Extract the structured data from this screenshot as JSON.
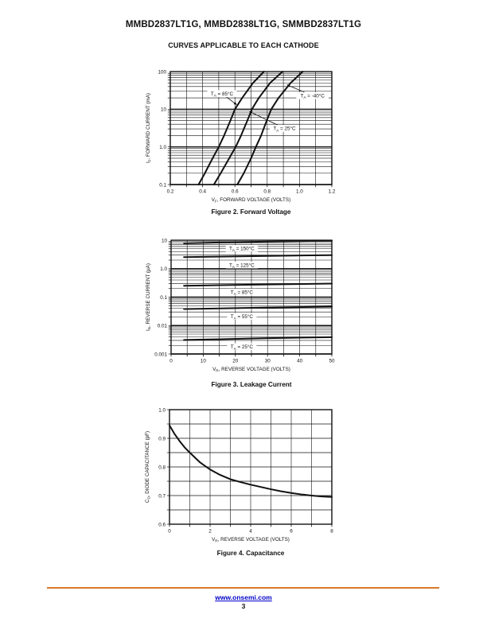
{
  "page": {
    "title": "MMBD2837LT1G, MMBD2838LT1G, SMMBD2837LT1G",
    "subtitle": "CURVES APPLICABLE TO EACH CATHODE",
    "footer": {
      "link_text": "www.onsemi.com",
      "page_number": "3"
    }
  },
  "colors": {
    "accent_rule": "#d9782b",
    "link": "#0000c8",
    "ink": "#111111"
  },
  "chart_data": [
    {
      "id": "fig2",
      "type": "line",
      "caption": "Figure 2. Forward Voltage",
      "xlabel": {
        "pre": "V",
        "sub": "F",
        "post": ", FORWARD VOLTAGE (VOLTS)"
      },
      "ylabel": {
        "pre": "I",
        "sub": "F",
        "post": ", FORWARD CURRENT (mA)"
      },
      "xlim": [
        0.2,
        1.2
      ],
      "ylim": [
        0.1,
        100
      ],
      "yscale": "log",
      "xgrid_step": 0.1,
      "xticks": [
        {
          "v": 0.2,
          "label": "0.2"
        },
        {
          "v": 0.4,
          "label": "0.4"
        },
        {
          "v": 0.6,
          "label": "0.6"
        },
        {
          "v": 0.8,
          "label": "0.8"
        },
        {
          "v": 1.0,
          "label": "1.0"
        },
        {
          "v": 1.2,
          "label": "1.2"
        }
      ],
      "yticks": [
        {
          "v": 100,
          "label": "100"
        },
        {
          "v": 10,
          "label": "10"
        },
        {
          "v": 1,
          "label": "1.0"
        },
        {
          "v": 0.1,
          "label": "0.1"
        }
      ],
      "series": [
        {
          "name": {
            "pre": "T",
            "sub": "A",
            "post": " = 85°C"
          },
          "points": [
            [
              0.375,
              0.1
            ],
            [
              0.414,
              0.2
            ],
            [
              0.462,
              0.5
            ],
            [
              0.5,
              1
            ],
            [
              0.533,
              2
            ],
            [
              0.572,
              5
            ],
            [
              0.6,
              10
            ],
            [
              0.645,
              20
            ],
            [
              0.712,
              50
            ],
            [
              0.78,
              100
            ]
          ]
        },
        {
          "name": {
            "pre": "T",
            "sub": "A",
            "post": " = 25°C"
          },
          "points": [
            [
              0.47,
              0.1
            ],
            [
              0.512,
              0.2
            ],
            [
              0.565,
              0.5
            ],
            [
              0.605,
              1
            ],
            [
              0.638,
              2
            ],
            [
              0.677,
              5
            ],
            [
              0.705,
              10
            ],
            [
              0.748,
              20
            ],
            [
              0.818,
              50
            ],
            [
              0.895,
              100
            ]
          ]
        },
        {
          "name": {
            "pre": "T",
            "sub": "A",
            "post": " = -40°C"
          },
          "points": [
            [
              0.615,
              0.1
            ],
            [
              0.655,
              0.2
            ],
            [
              0.7,
              0.5
            ],
            [
              0.73,
              1
            ],
            [
              0.762,
              2
            ],
            [
              0.797,
              5
            ],
            [
              0.825,
              10
            ],
            [
              0.87,
              20
            ],
            [
              0.945,
              50
            ],
            [
              1.02,
              100
            ]
          ]
        }
      ],
      "annotations": [
        {
          "text": {
            "pre": "T",
            "sub": "A",
            "post": " = 85°C"
          },
          "at": [
            0.52,
            26
          ],
          "arrow_to": [
            0.613,
            13
          ]
        },
        {
          "text": {
            "pre": "T",
            "sub": "A",
            "post": " = -40°C"
          },
          "at": [
            1.08,
            23
          ],
          "arrow_to": [
            0.92,
            45
          ]
        },
        {
          "text": {
            "pre": "T",
            "sub": "A",
            "post": " = 25°C"
          },
          "at": [
            0.907,
            3.1
          ],
          "arrow_to": [
            0.688,
            8.8
          ]
        }
      ]
    },
    {
      "id": "fig3",
      "type": "line",
      "caption": "Figure 3. Leakage Current",
      "xlabel": {
        "pre": "V",
        "sub": "R",
        "post": ", REVERSE VOLTAGE (VOLTS)"
      },
      "ylabel": {
        "pre": "I",
        "sub": "R",
        "post": ", REVERSE CURRENT (µA)"
      },
      "xlim": [
        0,
        50
      ],
      "ylim": [
        0.001,
        10
      ],
      "yscale": "log",
      "xgrid_step": 5,
      "xticks": [
        {
          "v": 0,
          "label": "0"
        },
        {
          "v": 10,
          "label": "10"
        },
        {
          "v": 20,
          "label": "20"
        },
        {
          "v": 30,
          "label": "30"
        },
        {
          "v": 40,
          "label": "40"
        },
        {
          "v": 50,
          "label": "50"
        }
      ],
      "yticks": [
        {
          "v": 10,
          "label": "10"
        },
        {
          "v": 1,
          "label": "1.0"
        },
        {
          "v": 0.1,
          "label": "0.1"
        },
        {
          "v": 0.01,
          "label": "0.01"
        },
        {
          "v": 0.001,
          "label": "0.001"
        }
      ],
      "series": [
        {
          "name": {
            "pre": "T",
            "sub": "A",
            "post": " = 150°C"
          },
          "points": [
            [
              4,
              7.8
            ],
            [
              15,
              8.3
            ],
            [
              30,
              8.9
            ],
            [
              50,
              9.6
            ]
          ]
        },
        {
          "name": {
            "pre": "T",
            "sub": "A",
            "post": " = 125°C"
          },
          "points": [
            [
              4,
              2.55
            ],
            [
              15,
              2.65
            ],
            [
              30,
              2.8
            ],
            [
              50,
              3.0
            ]
          ]
        },
        {
          "name": {
            "pre": "T",
            "sub": "A",
            "post": " = 85°C"
          },
          "points": [
            [
              4,
              0.25
            ],
            [
              15,
              0.262
            ],
            [
              30,
              0.278
            ],
            [
              50,
              0.3
            ]
          ]
        },
        {
          "name": {
            "pre": "T",
            "sub": "A",
            "post": " = 55°C"
          },
          "points": [
            [
              4,
              0.038
            ],
            [
              15,
              0.04
            ],
            [
              30,
              0.043
            ],
            [
              50,
              0.046
            ]
          ]
        },
        {
          "name": {
            "pre": "T",
            "sub": "A",
            "post": " = 25°C"
          },
          "points": [
            [
              4,
              0.0031
            ],
            [
              15,
              0.0033
            ],
            [
              30,
              0.0036
            ],
            [
              50,
              0.0039
            ]
          ]
        }
      ],
      "annotations": [
        {
          "text": {
            "pre": "T",
            "sub": "A",
            "post": " = 150°C"
          },
          "at": [
            22,
            5.2
          ]
        },
        {
          "text": {
            "pre": "T",
            "sub": "A",
            "post": " = 125°C"
          },
          "at": [
            22,
            1.35
          ]
        },
        {
          "text": {
            "pre": "T",
            "sub": "A",
            "post": " = 85°C"
          },
          "at": [
            22,
            0.15
          ]
        },
        {
          "text": {
            "pre": "T",
            "sub": "A",
            "post": " = 55°C"
          },
          "at": [
            22,
            0.021
          ]
        },
        {
          "text": {
            "pre": "T",
            "sub": "A",
            "post": " = 25°C"
          },
          "at": [
            22,
            0.0018
          ]
        }
      ]
    },
    {
      "id": "fig4",
      "type": "line",
      "caption": "Figure 4. Capacitance",
      "xlabel": {
        "pre": "V",
        "sub": "R",
        "post": ", REVERSE VOLTAGE (VOLTS)"
      },
      "ylabel": {
        "pre": "C",
        "sub": "D",
        "post": ", DIODE CAPACITANCE (pF)"
      },
      "xlim": [
        0,
        8
      ],
      "ylim": [
        0.6,
        1.0
      ],
      "yscale": "linear",
      "xgrid_step": 1,
      "ygrid_step": 0.05,
      "xticks": [
        {
          "v": 0,
          "label": "0"
        },
        {
          "v": 2,
          "label": "2"
        },
        {
          "v": 4,
          "label": "4"
        },
        {
          "v": 6,
          "label": "6"
        },
        {
          "v": 8,
          "label": "8"
        }
      ],
      "yticks": [
        {
          "v": 1.0,
          "label": "1.0"
        },
        {
          "v": 0.9,
          "label": "0.9"
        },
        {
          "v": 0.8,
          "label": "0.8"
        },
        {
          "v": 0.7,
          "label": "0.7"
        },
        {
          "v": 0.6,
          "label": "0.6"
        }
      ],
      "series": [
        {
          "name": "diode-capacitance",
          "points": [
            [
              0,
              0.945
            ],
            [
              0.25,
              0.915
            ],
            [
              0.5,
              0.89
            ],
            [
              0.75,
              0.868
            ],
            [
              1,
              0.85
            ],
            [
              1.5,
              0.816
            ],
            [
              2,
              0.791
            ],
            [
              2.5,
              0.772
            ],
            [
              3,
              0.757
            ],
            [
              3.5,
              0.747
            ],
            [
              4,
              0.738
            ],
            [
              4.5,
              0.73
            ],
            [
              5,
              0.722
            ],
            [
              5.5,
              0.715
            ],
            [
              6,
              0.709
            ],
            [
              6.5,
              0.704
            ],
            [
              7,
              0.7
            ],
            [
              7.5,
              0.697
            ],
            [
              8,
              0.695
            ]
          ]
        }
      ],
      "annotations": []
    }
  ]
}
